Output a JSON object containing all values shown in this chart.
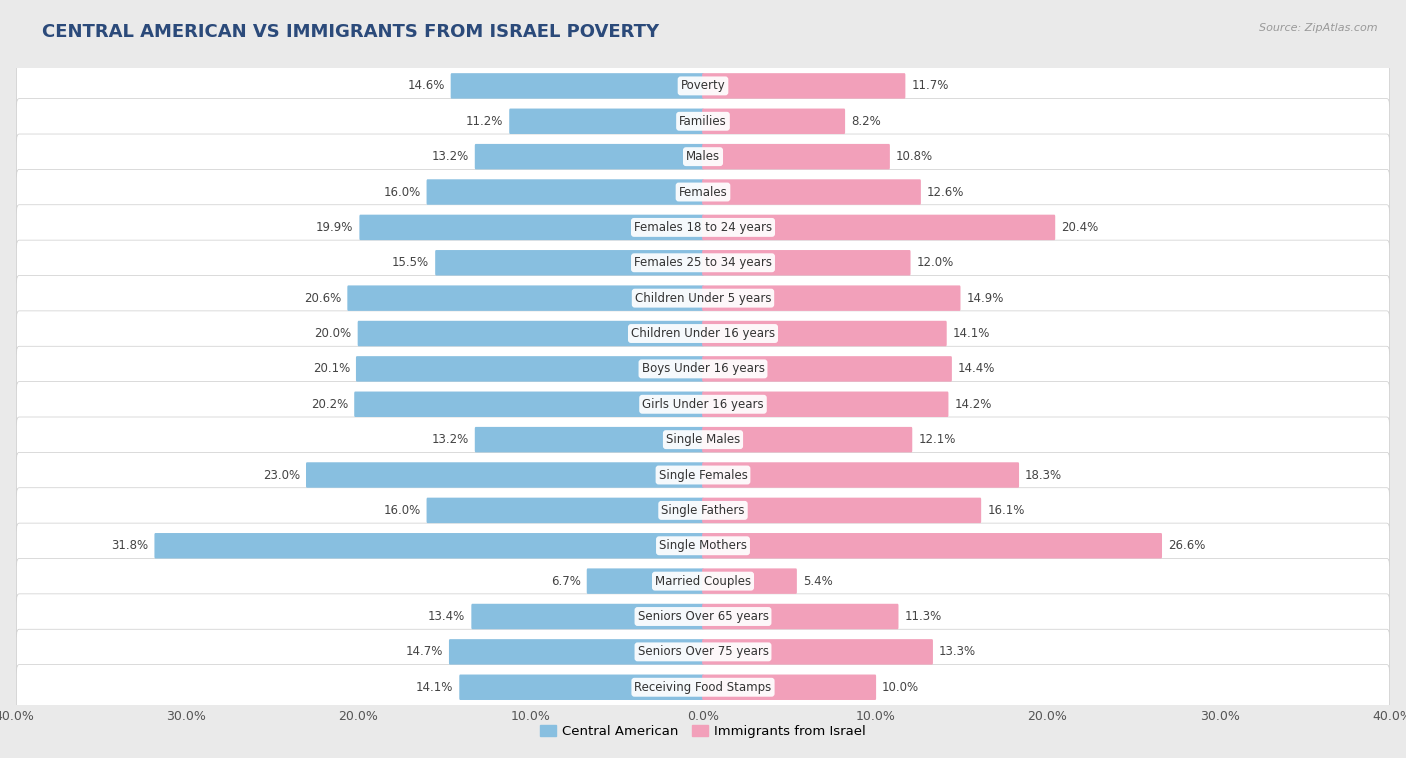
{
  "title": "CENTRAL AMERICAN VS IMMIGRANTS FROM ISRAEL POVERTY",
  "source": "Source: ZipAtlas.com",
  "categories": [
    "Poverty",
    "Families",
    "Males",
    "Females",
    "Females 18 to 24 years",
    "Females 25 to 34 years",
    "Children Under 5 years",
    "Children Under 16 years",
    "Boys Under 16 years",
    "Girls Under 16 years",
    "Single Males",
    "Single Females",
    "Single Fathers",
    "Single Mothers",
    "Married Couples",
    "Seniors Over 65 years",
    "Seniors Over 75 years",
    "Receiving Food Stamps"
  ],
  "central_american": [
    14.6,
    11.2,
    13.2,
    16.0,
    19.9,
    15.5,
    20.6,
    20.0,
    20.1,
    20.2,
    13.2,
    23.0,
    16.0,
    31.8,
    6.7,
    13.4,
    14.7,
    14.1
  ],
  "israel": [
    11.7,
    8.2,
    10.8,
    12.6,
    20.4,
    12.0,
    14.9,
    14.1,
    14.4,
    14.2,
    12.1,
    18.3,
    16.1,
    26.6,
    5.4,
    11.3,
    13.3,
    10.0
  ],
  "left_color": "#88BFE0",
  "right_color": "#F2A0BA",
  "bg_color": "#EAEAEA",
  "row_bg": "#FFFFFF",
  "xlim": 40.0,
  "legend_left": "Central American",
  "legend_right": "Immigrants from Israel",
  "title_color": "#2B4A7A",
  "label_color": "#555555",
  "value_color": "#444444"
}
